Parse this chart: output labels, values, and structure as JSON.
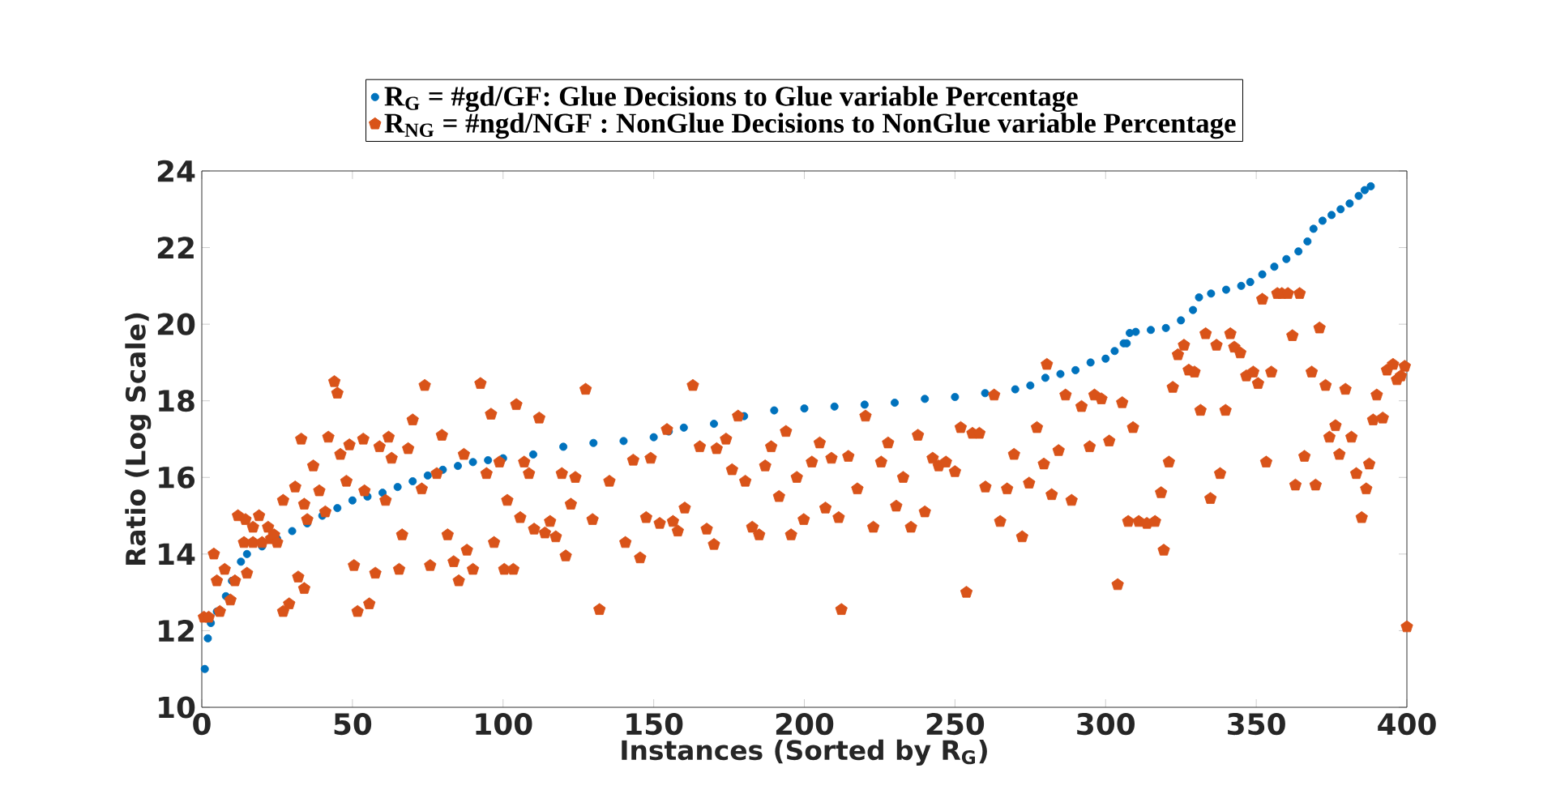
{
  "chart_data": {
    "type": "scatter",
    "xlabel": "Instances (Sorted by R$_{G}$)",
    "ylabel": "Ratio (Log Scale)",
    "xlim": [
      0,
      400
    ],
    "ylim": [
      10,
      24
    ],
    "xticks": [
      0,
      50,
      100,
      150,
      200,
      250,
      300,
      350,
      400
    ],
    "yticks": [
      10,
      12,
      14,
      16,
      18,
      20,
      22,
      24
    ],
    "legend": "top",
    "series": [
      {
        "name": "R$_{G}$ = #gd/GF: Glue Decisions to Glue variable Percentage",
        "color": "#0072bd",
        "marker": "circle",
        "x": [
          1,
          2,
          3,
          5,
          8,
          10,
          13,
          15,
          20,
          25,
          30,
          35,
          40,
          45,
          50,
          55,
          60,
          65,
          70,
          75,
          80,
          85,
          90,
          95,
          100,
          110,
          120,
          130,
          140,
          150,
          155,
          160,
          170,
          180,
          190,
          200,
          210,
          220,
          230,
          240,
          250,
          260,
          270,
          275,
          280,
          285,
          290,
          295,
          300,
          303,
          306,
          307,
          308,
          310,
          315,
          320,
          325,
          329,
          331,
          335,
          340,
          345,
          348,
          352,
          356,
          360,
          364,
          367,
          369,
          372,
          375,
          378,
          381,
          384,
          386,
          388
        ],
        "values": [
          11.0,
          11.8,
          12.2,
          12.5,
          12.9,
          13.3,
          13.8,
          14.0,
          14.2,
          14.4,
          14.6,
          14.8,
          15.0,
          15.2,
          15.4,
          15.5,
          15.6,
          15.75,
          15.9,
          16.05,
          16.2,
          16.3,
          16.4,
          16.45,
          16.5,
          16.6,
          16.8,
          16.9,
          16.95,
          17.05,
          17.2,
          17.3,
          17.4,
          17.6,
          17.75,
          17.8,
          17.85,
          17.9,
          17.95,
          18.05,
          18.1,
          18.2,
          18.3,
          18.4,
          18.6,
          18.7,
          18.8,
          19.0,
          19.1,
          19.3,
          19.5,
          19.5,
          19.77,
          19.8,
          19.85,
          19.9,
          20.1,
          20.37,
          20.7,
          20.8,
          20.9,
          21.0,
          21.1,
          21.3,
          21.5,
          21.7,
          21.9,
          22.16,
          22.49,
          22.7,
          22.85,
          23.0,
          23.15,
          23.35,
          23.5,
          23.6
        ]
      },
      {
        "name": "R$_{NG}$ = #ngd/NGF : NonGlue Decisions to NonGlue variable Percentage",
        "color": "#d95319",
        "marker": "star",
        "x": [
          0.7,
          2.3,
          4,
          5,
          6,
          7.6,
          9.5,
          11,
          12,
          14.5,
          14,
          15,
          17,
          17,
          19,
          20,
          22,
          23,
          24,
          25,
          27,
          27,
          29,
          31,
          32,
          33,
          34,
          34,
          35,
          37,
          39,
          41,
          42,
          44,
          45,
          46,
          48,
          49,
          50.5,
          51.7,
          53.6,
          54,
          55.6,
          57.6,
          59,
          61,
          62,
          63,
          65.5,
          66.5,
          68.5,
          70,
          73,
          74,
          75.8,
          78,
          79.7,
          81.6,
          83.6,
          85.3,
          87,
          88,
          90,
          92.5,
          94.5,
          96,
          97,
          98.8,
          100.4,
          101.4,
          103.4,
          104.4,
          105.7,
          107,
          108.6,
          110.3,
          112,
          113.9,
          115.6,
          117.5,
          119.5,
          120.8,
          122.5,
          124,
          127.4,
          129.7,
          132,
          135.3,
          140.6,
          143.2,
          145.5,
          147.5,
          149,
          152,
          154.4,
          156.4,
          158,
          160.3,
          163,
          165.3,
          167.6,
          170,
          170.9,
          174,
          176,
          178,
          180.4,
          182.7,
          185,
          187,
          189,
          191.6,
          193.9,
          195.6,
          197.5,
          199.8,
          202.5,
          205.1,
          207,
          209,
          211.4,
          212.3,
          214.6,
          217.6,
          220.3,
          222.9,
          225.5,
          227.8,
          230.5,
          232.8,
          235.4,
          237.7,
          240,
          242.6,
          244.6,
          247,
          250,
          251.9,
          253.8,
          255.8,
          258.1,
          260.1,
          263,
          265,
          267.3,
          269.6,
          272.3,
          274.6,
          277.2,
          279.5,
          280.5,
          282.1,
          284.4,
          286.7,
          288.7,
          292,
          294.7,
          296.3,
          298.6,
          301.2,
          304,
          305.5,
          307.5,
          309.1,
          311,
          313.7,
          316.4,
          318.4,
          319.3,
          321,
          322.3,
          324,
          326,
          327.6,
          329.5,
          331.5,
          333.2,
          334.8,
          336.8,
          338,
          339.8,
          341.4,
          342.7,
          344.7,
          346.7,
          349,
          350.6,
          352,
          353.3,
          355,
          357,
          358.5,
          360.5,
          362,
          363,
          364.4,
          366,
          368.4,
          369.7,
          371,
          373,
          374.3,
          376.3,
          377.6,
          379.6,
          381.6,
          383.2,
          385,
          386.5,
          387.5,
          388.8,
          390,
          392,
          393.4,
          395.4,
          396.7,
          398,
          399.3,
          400
        ],
        "values": [
          12.35,
          12.35,
          14.0,
          13.3,
          12.5,
          13.6,
          12.8,
          13.3,
          15.0,
          14.9,
          14.3,
          13.5,
          14.7,
          14.3,
          15.0,
          14.3,
          14.7,
          14.4,
          14.5,
          14.3,
          15.4,
          12.5,
          12.7,
          15.75,
          13.4,
          17.0,
          13.1,
          15.3,
          14.9,
          16.3,
          15.65,
          15.1,
          17.05,
          18.5,
          18.2,
          16.6,
          15.9,
          16.85,
          13.7,
          12.5,
          17.0,
          15.65,
          12.7,
          13.5,
          16.8,
          15.4,
          17.05,
          16.5,
          13.6,
          14.5,
          16.75,
          17.5,
          15.7,
          18.4,
          13.7,
          16.1,
          17.1,
          14.5,
          13.8,
          13.3,
          16.6,
          14.1,
          13.6,
          18.45,
          16.1,
          17.65,
          14.3,
          16.4,
          13.6,
          15.4,
          13.6,
          17.9,
          14.95,
          16.4,
          16.1,
          14.65,
          17.55,
          14.55,
          14.85,
          14.45,
          16.1,
          13.95,
          15.3,
          16.0,
          18.3,
          14.9,
          12.55,
          15.9,
          14.3,
          16.45,
          13.9,
          14.95,
          16.5,
          14.8,
          17.25,
          14.85,
          14.6,
          15.2,
          18.4,
          16.8,
          14.65,
          14.25,
          16.75,
          17.0,
          16.2,
          17.6,
          15.9,
          14.7,
          14.5,
          16.3,
          16.8,
          15.5,
          17.2,
          14.5,
          16.0,
          14.9,
          16.4,
          16.9,
          15.2,
          16.5,
          14.95,
          12.55,
          16.55,
          15.7,
          17.6,
          14.7,
          16.4,
          16.9,
          15.25,
          16.0,
          14.7,
          17.1,
          15.1,
          16.5,
          16.3,
          16.4,
          16.15,
          17.3,
          13.0,
          17.15,
          17.15,
          15.75,
          18.15,
          14.85,
          15.7,
          16.6,
          14.45,
          15.85,
          17.3,
          16.35,
          18.95,
          15.55,
          16.7,
          18.15,
          15.4,
          17.85,
          16.8,
          18.15,
          18.05,
          16.95,
          13.2,
          17.95,
          14.85,
          17.3,
          14.85,
          14.8,
          14.85,
          15.6,
          14.1,
          16.4,
          18.35,
          19.2,
          19.45,
          18.8,
          18.75,
          17.75,
          19.75,
          15.45,
          19.45,
          16.1,
          17.75,
          19.75,
          19.4,
          19.25,
          18.65,
          18.75,
          18.45,
          20.65,
          16.4,
          18.75,
          20.8,
          20.8,
          20.8,
          19.7,
          15.8,
          20.8,
          16.55,
          18.75,
          15.8,
          19.9,
          18.4,
          17.05,
          17.35,
          16.6,
          18.3,
          17.05,
          16.1,
          14.95,
          15.7,
          16.35,
          17.5,
          18.15,
          17.55,
          18.8,
          18.95,
          18.55,
          18.65,
          18.9,
          12.1
        ]
      }
    ]
  }
}
